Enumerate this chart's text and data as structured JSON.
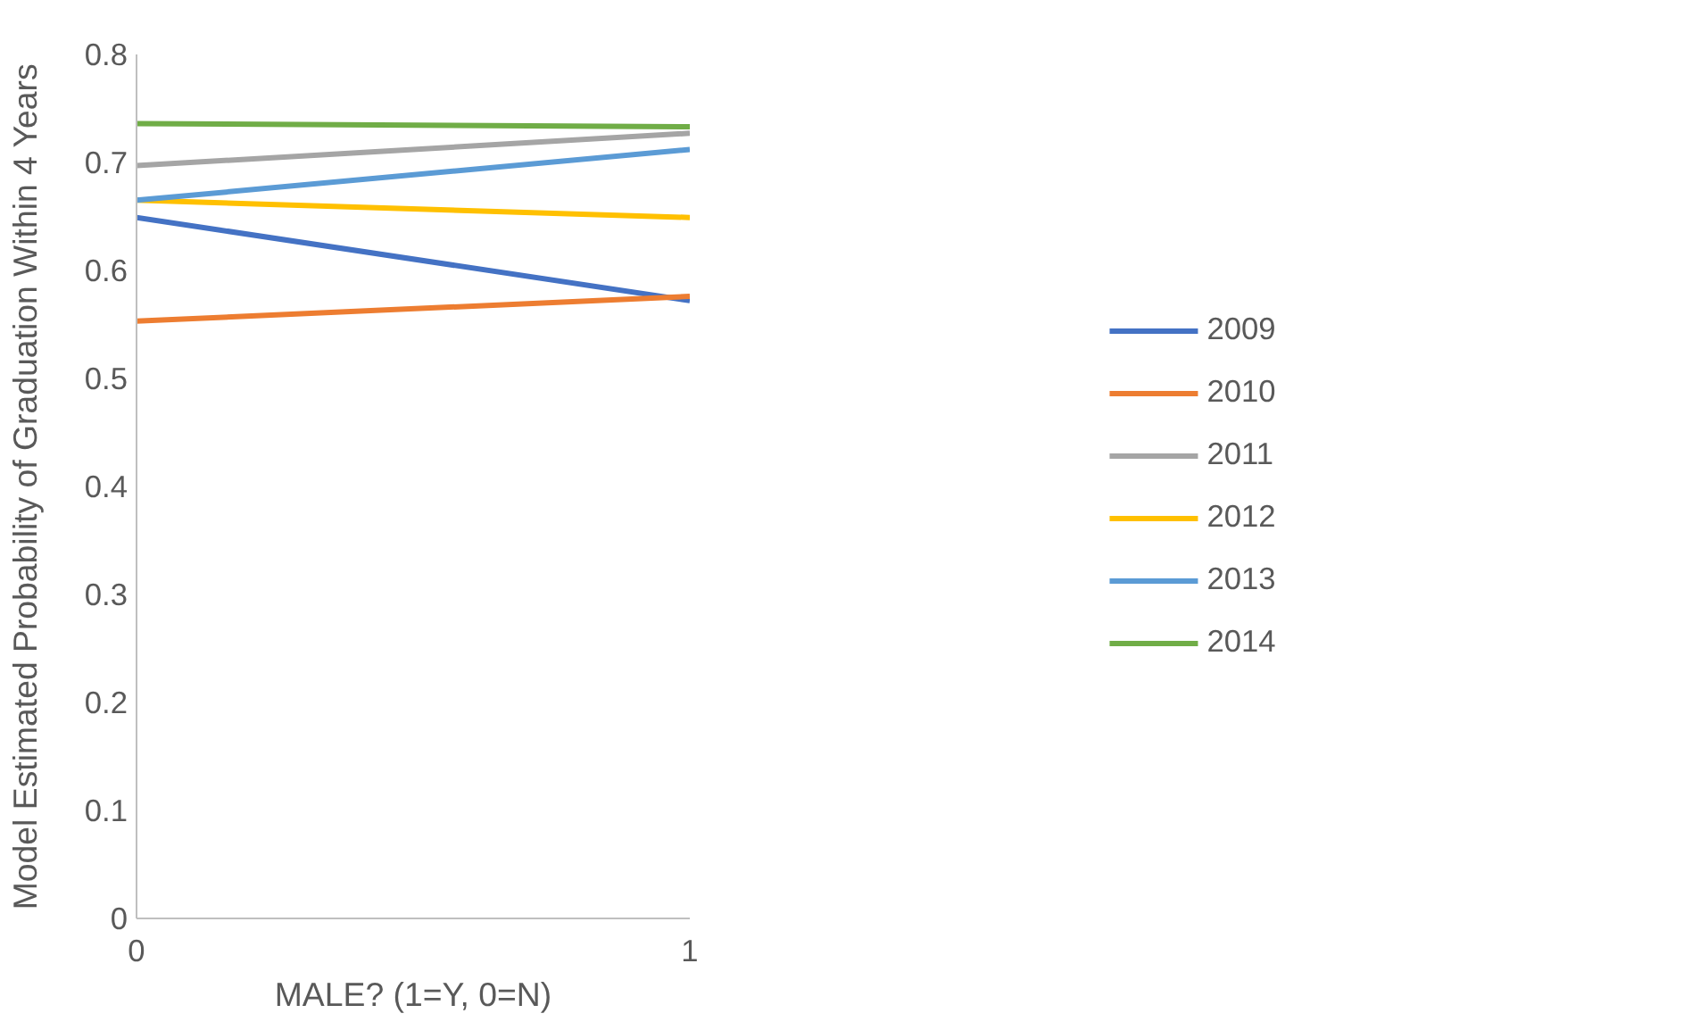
{
  "chart_data": {
    "type": "line",
    "xlabel": "MALE? (1=Y, 0=N)",
    "ylabel": "Model Estimated Probability of Graduation Within 4 Years",
    "x": [
      0,
      1
    ],
    "xlim": [
      0,
      1
    ],
    "xticks": [
      0,
      1
    ],
    "ylim": [
      0,
      0.8
    ],
    "yticks": [
      0,
      0.1,
      0.2,
      0.3,
      0.4,
      0.5,
      0.6,
      0.7,
      0.8
    ],
    "grid": false,
    "legend": "right",
    "marker": "none",
    "line_style": "solid",
    "series": [
      {
        "name": "2009",
        "color": "#4472c4",
        "values": [
          0.649,
          0.572
        ]
      },
      {
        "name": "2010",
        "color": "#ed7d31",
        "values": [
          0.553,
          0.576
        ]
      },
      {
        "name": "2011",
        "color": "#a5a5a5",
        "values": [
          0.697,
          0.727
        ]
      },
      {
        "name": "2012",
        "color": "#ffc000",
        "values": [
          0.665,
          0.649
        ]
      },
      {
        "name": "2013",
        "color": "#5b9bd5",
        "values": [
          0.665,
          0.712
        ]
      },
      {
        "name": "2014",
        "color": "#70ad47",
        "values": [
          0.736,
          0.733
        ]
      }
    ]
  }
}
